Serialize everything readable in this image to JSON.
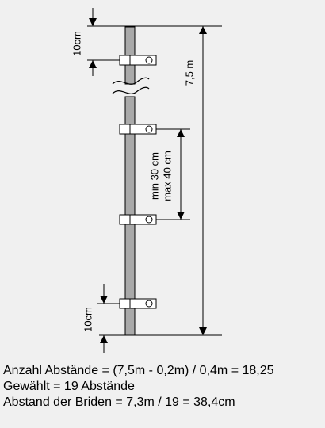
{
  "labels": {
    "top_gap": "10cm",
    "bottom_gap": "10cm",
    "total_length": "7,5 m",
    "spacing_min": "min 30 cm",
    "spacing_max": "max 40 cm"
  },
  "calculation": {
    "line1": "Anzahl Abstände = (7,5m - 0,2m) / 0,4m = 18,25",
    "line2": "Gewählt = 19 Abstände",
    "line3": "Abstand der Briden = 7,3m / 19 = 38,4cm"
  },
  "colors": {
    "background": "#f0f0f0",
    "pipe_fill": "#a9a9a9",
    "clamp_fill": "#ffffff",
    "line": "#000000"
  }
}
